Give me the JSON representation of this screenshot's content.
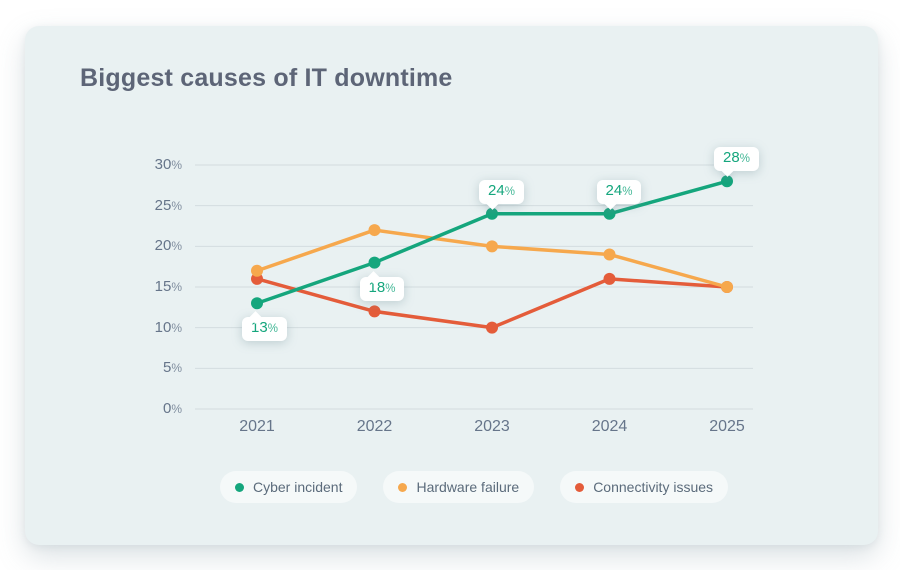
{
  "title": "Biggest causes of IT downtime",
  "colors": {
    "page_background": "#ffffff",
    "panel_background": "#e9f1f2",
    "gridline": "#d3dcdf",
    "axis_text": "#66758a",
    "title_text": "#5d6577",
    "legend_text": "#5b6b7b",
    "badge_background": "#ffffff"
  },
  "chart_data": {
    "type": "line",
    "title": "Biggest causes of IT downtime",
    "categories": [
      "2021",
      "2022",
      "2023",
      "2024",
      "2025"
    ],
    "series": [
      {
        "name": "Cyber incident",
        "color": "#15a67d",
        "values": [
          13,
          18,
          24,
          24,
          28
        ]
      },
      {
        "name": "Hardware failure",
        "color": "#f6a84d",
        "values": [
          17,
          22,
          20,
          19,
          15
        ]
      },
      {
        "name": "Connectivity issues",
        "color": "#e45c3a",
        "values": [
          16,
          12,
          10,
          16,
          15
        ]
      }
    ],
    "point_labels": {
      "series": "Cyber incident",
      "texts": [
        "13%",
        "18%",
        "24%",
        "24%",
        "28%"
      ],
      "placement": [
        "below",
        "below",
        "above",
        "above",
        "above"
      ]
    },
    "yticks": [
      0,
      5,
      10,
      15,
      20,
      25,
      30
    ],
    "ytick_suffix": "%",
    "ylim": [
      0,
      30
    ],
    "grid": true,
    "legend_position": "bottom",
    "legend": [
      "Cyber incident",
      "Hardware failure",
      "Connectivity issues"
    ]
  }
}
